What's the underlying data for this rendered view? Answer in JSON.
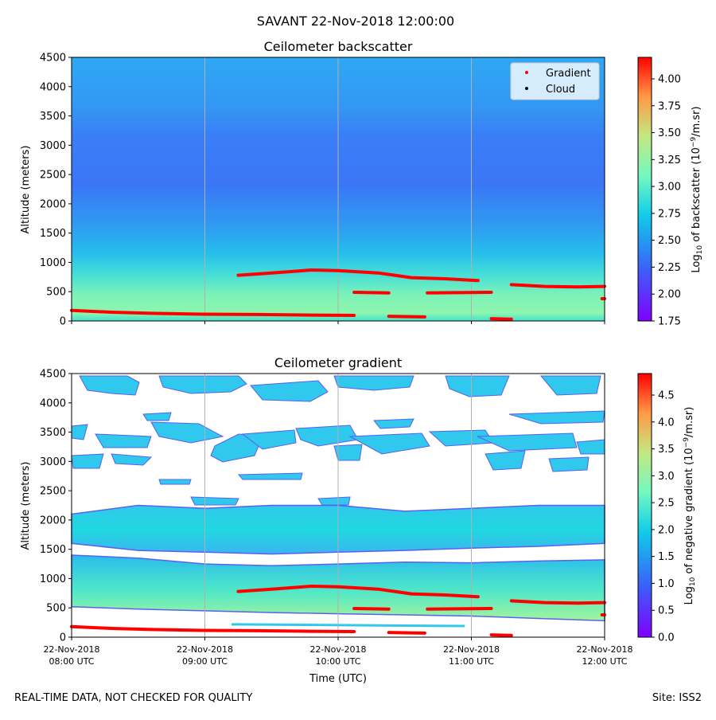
{
  "suptitle": "SAVANT 22-Nov-2018 12:00:00",
  "footer": {
    "left": "REAL-TIME DATA, NOT CHECKED FOR QUALITY",
    "right": "Site: ISS2"
  },
  "colors": {
    "gradient_marker": "#ff0000",
    "cloud_marker": "#000000",
    "colormap": "rainbow"
  },
  "chart_data": [
    {
      "type": "heatmap",
      "title": "Ceilometer backscatter",
      "ylabel": "Altitude (meters)",
      "ylim": [
        0,
        4500
      ],
      "yticks": [
        0,
        500,
        1000,
        1500,
        2000,
        2500,
        3000,
        3500,
        4000,
        4500
      ],
      "xlim_hours": [
        8,
        12
      ],
      "grid_x_hours": [
        9,
        10,
        11
      ],
      "colorbar": {
        "label_prefix": "Log",
        "label_sub": "10",
        "label_mid": " of backscatter (10",
        "label_sup": "−9",
        "label_suffix": "/m.sr)",
        "range": [
          1.75,
          4.2
        ],
        "ticks": [
          "1.75",
          "2.00",
          "2.25",
          "2.50",
          "2.75",
          "3.00",
          "3.25",
          "3.50",
          "3.75",
          "4.00"
        ]
      },
      "legend": {
        "position": "top-right",
        "entries": [
          {
            "label": "Gradient",
            "color": "#ff0000"
          },
          {
            "label": "Cloud",
            "color": "#000000"
          }
        ]
      },
      "gradient_segments": [
        {
          "x": [
            8.0,
            8.3,
            8.6,
            9.0,
            9.4,
            9.8,
            10.12
          ],
          "y": [
            180,
            150,
            130,
            115,
            110,
            100,
            95
          ]
        },
        {
          "x": [
            9.25,
            9.5,
            9.8,
            10.0,
            10.3,
            10.55,
            10.8,
            11.05
          ],
          "y": [
            780,
            820,
            870,
            860,
            820,
            740,
            720,
            690
          ]
        },
        {
          "x": [
            10.12,
            10.38
          ],
          "y": [
            490,
            480
          ]
        },
        {
          "x": [
            10.38,
            10.65
          ],
          "y": [
            80,
            70
          ]
        },
        {
          "x": [
            10.67,
            11.15
          ],
          "y": [
            480,
            490
          ]
        },
        {
          "x": [
            11.15,
            11.3
          ],
          "y": [
            40,
            30
          ]
        },
        {
          "x": [
            11.3,
            11.55,
            11.8,
            12.0
          ],
          "y": [
            620,
            590,
            580,
            590
          ]
        },
        {
          "x": [
            11.98,
            12.0
          ],
          "y": [
            380,
            380
          ]
        }
      ]
    },
    {
      "type": "heatmap",
      "title": "Ceilometer gradient",
      "ylabel": "Altitude (meters)",
      "xlabel": "Time (UTC)",
      "ylim": [
        0,
        4500
      ],
      "yticks": [
        0,
        500,
        1000,
        1500,
        2000,
        2500,
        3000,
        3500,
        4000,
        4500
      ],
      "xlim_hours": [
        8,
        12
      ],
      "grid_x_hours": [
        9,
        10,
        11
      ],
      "xticks": [
        {
          "hour": 8,
          "line1": "22-Nov-2018",
          "line2": "08:00 UTC"
        },
        {
          "hour": 9,
          "line1": "22-Nov-2018",
          "line2": "09:00 UTC"
        },
        {
          "hour": 10,
          "line1": "22-Nov-2018",
          "line2": "10:00 UTC"
        },
        {
          "hour": 11,
          "line1": "22-Nov-2018",
          "line2": "11:00 UTC"
        },
        {
          "hour": 12,
          "line1": "22-Nov-2018",
          "line2": "12:00 UTC"
        }
      ],
      "colorbar": {
        "label_prefix": "Log",
        "label_sub": "10",
        "label_mid": " of negative gradient (10",
        "label_sup": "−9",
        "label_suffix": "/m.sr)",
        "range": [
          0.0,
          4.9
        ],
        "ticks": [
          "0.0",
          "0.5",
          "1.0",
          "1.5",
          "2.0",
          "2.5",
          "3.0",
          "3.5",
          "4.0",
          "4.5"
        ]
      },
      "bands": [
        {
          "x": [
            8,
            8.5,
            9,
            9.5,
            10,
            10.5,
            11,
            11.5,
            12
          ],
          "top": [
            2100,
            2250,
            2200,
            2250,
            2250,
            2150,
            2200,
            2250,
            2250
          ],
          "bottom": [
            1600,
            1480,
            1450,
            1420,
            1450,
            1480,
            1520,
            1550,
            1600
          ]
        },
        {
          "x": [
            8,
            8.5,
            9,
            9.5,
            10,
            10.5,
            11,
            11.5,
            12
          ],
          "top": [
            1400,
            1350,
            1250,
            1220,
            1250,
            1280,
            1270,
            1300,
            1320
          ],
          "bottom": [
            520,
            480,
            450,
            420,
            400,
            380,
            360,
            320,
            280
          ]
        }
      ],
      "gradient_segments": [
        {
          "x": [
            8.0,
            8.3,
            8.6,
            9.0,
            9.4,
            9.8,
            10.12
          ],
          "y": [
            180,
            150,
            130,
            115,
            110,
            100,
            95
          ]
        },
        {
          "x": [
            9.25,
            9.5,
            9.8,
            10.0,
            10.3,
            10.55,
            10.8,
            11.05
          ],
          "y": [
            780,
            820,
            870,
            860,
            820,
            740,
            720,
            690
          ]
        },
        {
          "x": [
            10.12,
            10.38
          ],
          "y": [
            490,
            480
          ]
        },
        {
          "x": [
            10.38,
            10.65
          ],
          "y": [
            80,
            70
          ]
        },
        {
          "x": [
            10.67,
            11.15
          ],
          "y": [
            480,
            490
          ]
        },
        {
          "x": [
            11.15,
            11.3
          ],
          "y": [
            40,
            30
          ]
        },
        {
          "x": [
            11.3,
            11.55,
            11.8,
            12.0
          ],
          "y": [
            620,
            590,
            580,
            590
          ]
        },
        {
          "x": [
            11.98,
            12.0
          ],
          "y": [
            380,
            380
          ]
        }
      ]
    }
  ]
}
